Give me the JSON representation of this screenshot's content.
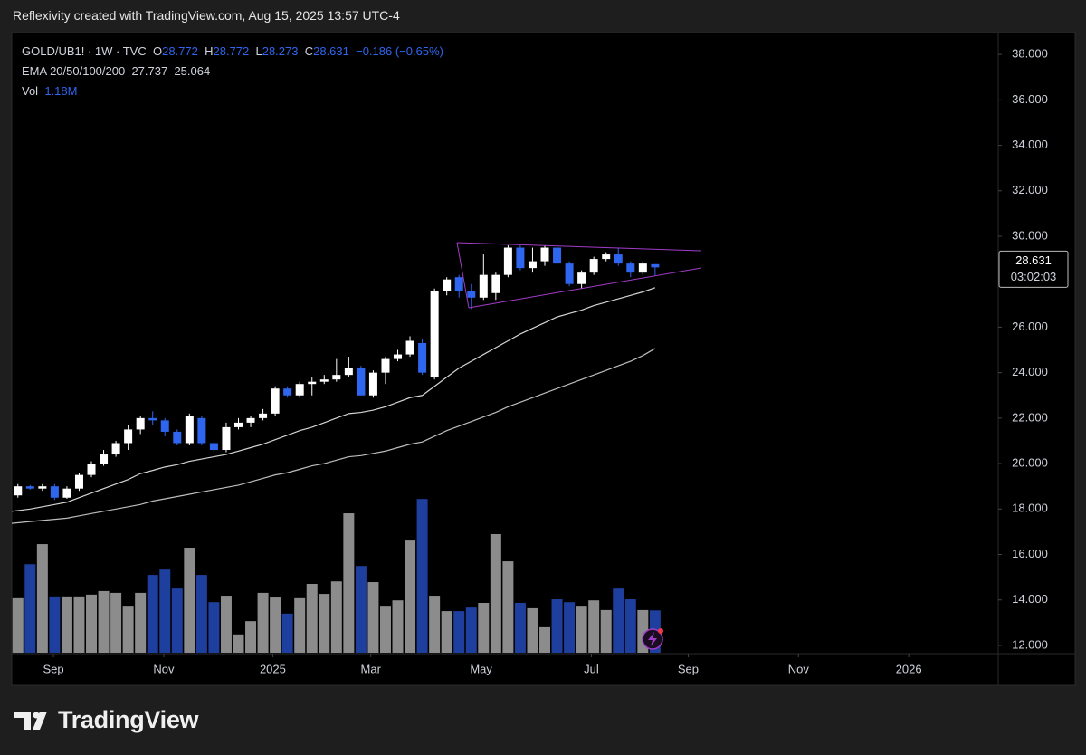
{
  "header": "Reflexivity created with TradingView.com, Aug 15, 2025 13:57 UTC-4",
  "footer": "TradingView",
  "chart_data": {
    "type": "candlestick",
    "legend_title": "GOLD/UB1! · 1W · TVC",
    "ohlc_labels": [
      "O",
      "H",
      "L",
      "C"
    ],
    "change_label": "−0.186 (−0.65%)",
    "open": [
      18.6,
      19.0,
      18.9,
      19.0,
      18.5,
      18.9,
      19.5,
      20.0,
      20.4,
      20.9,
      21.5,
      22.0,
      21.9,
      21.4,
      20.9,
      22.0,
      20.9,
      20.6,
      21.6,
      21.8,
      22.0,
      22.2,
      23.3,
      23.0,
      23.5,
      23.6,
      23.7,
      23.9,
      24.2,
      23.0,
      24.0,
      24.6,
      24.8,
      25.3,
      23.8,
      27.6,
      28.2,
      27.6,
      27.3,
      27.5,
      28.3,
      29.5,
      28.6,
      28.9,
      29.5,
      28.8,
      27.9,
      28.4,
      29.0,
      29.2,
      28.8,
      28.4,
      28.772
    ],
    "high": [
      19.1,
      19.05,
      19.1,
      19.1,
      19.0,
      19.6,
      20.1,
      20.6,
      21.0,
      21.7,
      22.1,
      22.3,
      22.0,
      21.5,
      22.2,
      22.1,
      21.0,
      21.8,
      22.0,
      22.1,
      22.4,
      23.4,
      23.4,
      23.6,
      23.8,
      23.9,
      24.6,
      24.7,
      24.3,
      24.1,
      24.7,
      25.0,
      25.6,
      25.5,
      27.7,
      28.2,
      28.3,
      27.9,
      29.2,
      28.4,
      29.6,
      29.6,
      29.5,
      29.6,
      29.6,
      28.9,
      28.5,
      29.1,
      29.3,
      29.5,
      28.9,
      28.9,
      28.772
    ],
    "low": [
      18.5,
      18.85,
      18.8,
      18.4,
      18.45,
      18.8,
      19.4,
      19.9,
      20.3,
      20.6,
      21.3,
      21.7,
      21.2,
      20.8,
      20.8,
      20.8,
      20.5,
      20.5,
      21.5,
      21.6,
      21.9,
      22.1,
      22.9,
      22.9,
      23.0,
      23.5,
      23.6,
      23.8,
      23.0,
      22.9,
      23.5,
      24.5,
      24.7,
      23.9,
      23.7,
      27.4,
      27.3,
      26.8,
      27.2,
      27.2,
      28.2,
      28.5,
      28.4,
      28.7,
      28.7,
      27.8,
      27.7,
      28.3,
      28.9,
      28.7,
      28.2,
      28.3,
      28.273
    ],
    "close": [
      19.0,
      18.9,
      19.0,
      18.5,
      18.9,
      19.5,
      20.0,
      20.4,
      20.9,
      21.5,
      22.0,
      21.9,
      21.4,
      20.9,
      22.1,
      20.9,
      20.6,
      21.6,
      21.8,
      22.0,
      22.2,
      23.3,
      23.0,
      23.5,
      23.6,
      23.7,
      23.9,
      24.2,
      23.0,
      24.0,
      24.6,
      24.8,
      25.4,
      24.0,
      27.6,
      28.1,
      27.6,
      27.3,
      28.3,
      28.3,
      29.5,
      28.6,
      28.9,
      29.5,
      28.8,
      27.9,
      28.4,
      29.0,
      29.2,
      28.8,
      28.4,
      28.8,
      28.631
    ],
    "up_color": "#ffffff",
    "down_color": "#2f66f0",
    "ema_label": "EMA 20/50/100/200",
    "ema": [
      {
        "color": "#d4d4d4",
        "values": [
          17.9,
          18.0,
          18.1,
          18.2,
          18.3,
          18.5,
          18.7,
          18.9,
          19.1,
          19.3,
          19.56,
          19.7,
          19.85,
          19.95,
          20.1,
          20.2,
          20.3,
          20.4,
          20.55,
          20.7,
          20.85,
          21.05,
          21.25,
          21.45,
          21.6,
          21.8,
          22.0,
          22.2,
          22.25,
          22.35,
          22.5,
          22.7,
          22.9,
          23.0,
          23.4,
          23.8,
          24.2,
          24.5,
          24.8,
          25.1,
          25.4,
          25.7,
          25.95,
          26.2,
          26.45,
          26.6,
          26.75,
          26.95,
          27.1,
          27.25,
          27.4,
          27.55,
          27.737
        ]
      },
      {
        "color": "#bdbdbd",
        "values": [
          17.37,
          17.45,
          17.5,
          17.55,
          17.6,
          17.7,
          17.8,
          17.9,
          18.0,
          18.1,
          18.2,
          18.35,
          18.45,
          18.55,
          18.65,
          18.75,
          18.85,
          18.95,
          19.05,
          19.2,
          19.35,
          19.5,
          19.6,
          19.75,
          19.9,
          20.0,
          20.15,
          20.3,
          20.35,
          20.45,
          20.55,
          20.7,
          20.85,
          20.95,
          21.2,
          21.45,
          21.65,
          21.85,
          22.05,
          22.25,
          22.5,
          22.7,
          22.9,
          23.1,
          23.3,
          23.5,
          23.7,
          23.9,
          24.1,
          24.3,
          24.5,
          24.75,
          25.064
        ]
      }
    ],
    "volume": {
      "name": "Vol",
      "last_value_label": "1.18M",
      "up_color": "#8c8c8c",
      "down_color": "#1f3f9f",
      "ylim": [
        0,
        4.8
      ],
      "values": [
        1.52,
        2.47,
        3.03,
        1.57,
        1.57,
        1.57,
        1.62,
        1.72,
        1.67,
        1.31,
        1.67,
        2.17,
        2.32,
        1.79,
        2.93,
        2.17,
        1.41,
        1.59,
        0.51,
        0.88,
        1.67,
        1.54,
        1.09,
        1.52,
        1.92,
        1.64,
        1.99,
        3.89,
        2.42,
        1.97,
        1.31,
        1.46,
        3.13,
        4.29,
        1.59,
        1.16,
        1.16,
        1.26,
        1.39,
        3.31,
        2.55,
        1.39,
        1.24,
        0.71,
        1.49,
        1.41,
        1.31,
        1.46,
        1.19,
        1.79,
        1.49,
        1.19,
        1.18
      ]
    },
    "countdown": "03:02:03",
    "xlim": [
      -0.5,
      80
    ],
    "xticks": [
      {
        "value": 2.9,
        "label": "Sep"
      },
      {
        "value": 11.9,
        "label": "Nov"
      },
      {
        "value": 20.8,
        "label": "2025"
      },
      {
        "value": 28.8,
        "label": "Mar"
      },
      {
        "value": 37.8,
        "label": "May"
      },
      {
        "value": 46.8,
        "label": "Jul"
      },
      {
        "value": 54.7,
        "label": "Sep"
      },
      {
        "value": 63.7,
        "label": "Nov"
      },
      {
        "value": 72.7,
        "label": "2026"
      }
    ],
    "ylim": [
      11.64,
      38.96
    ],
    "yticks": [
      {
        "value": 12,
        "label": "12.000"
      },
      {
        "value": 14,
        "label": "14.000"
      },
      {
        "value": 16,
        "label": "16.000"
      },
      {
        "value": 18,
        "label": "18.000"
      },
      {
        "value": 20,
        "label": "20.000"
      },
      {
        "value": 22,
        "label": "22.000"
      },
      {
        "value": 24,
        "label": "24.000"
      },
      {
        "value": 26,
        "label": "26.000"
      },
      {
        "value": 30,
        "label": "30.000"
      },
      {
        "value": 32,
        "label": "32.000"
      },
      {
        "value": 34,
        "label": "34.000"
      },
      {
        "value": 36,
        "label": "36.000"
      },
      {
        "value": 38,
        "label": "38.000"
      }
    ]
  }
}
